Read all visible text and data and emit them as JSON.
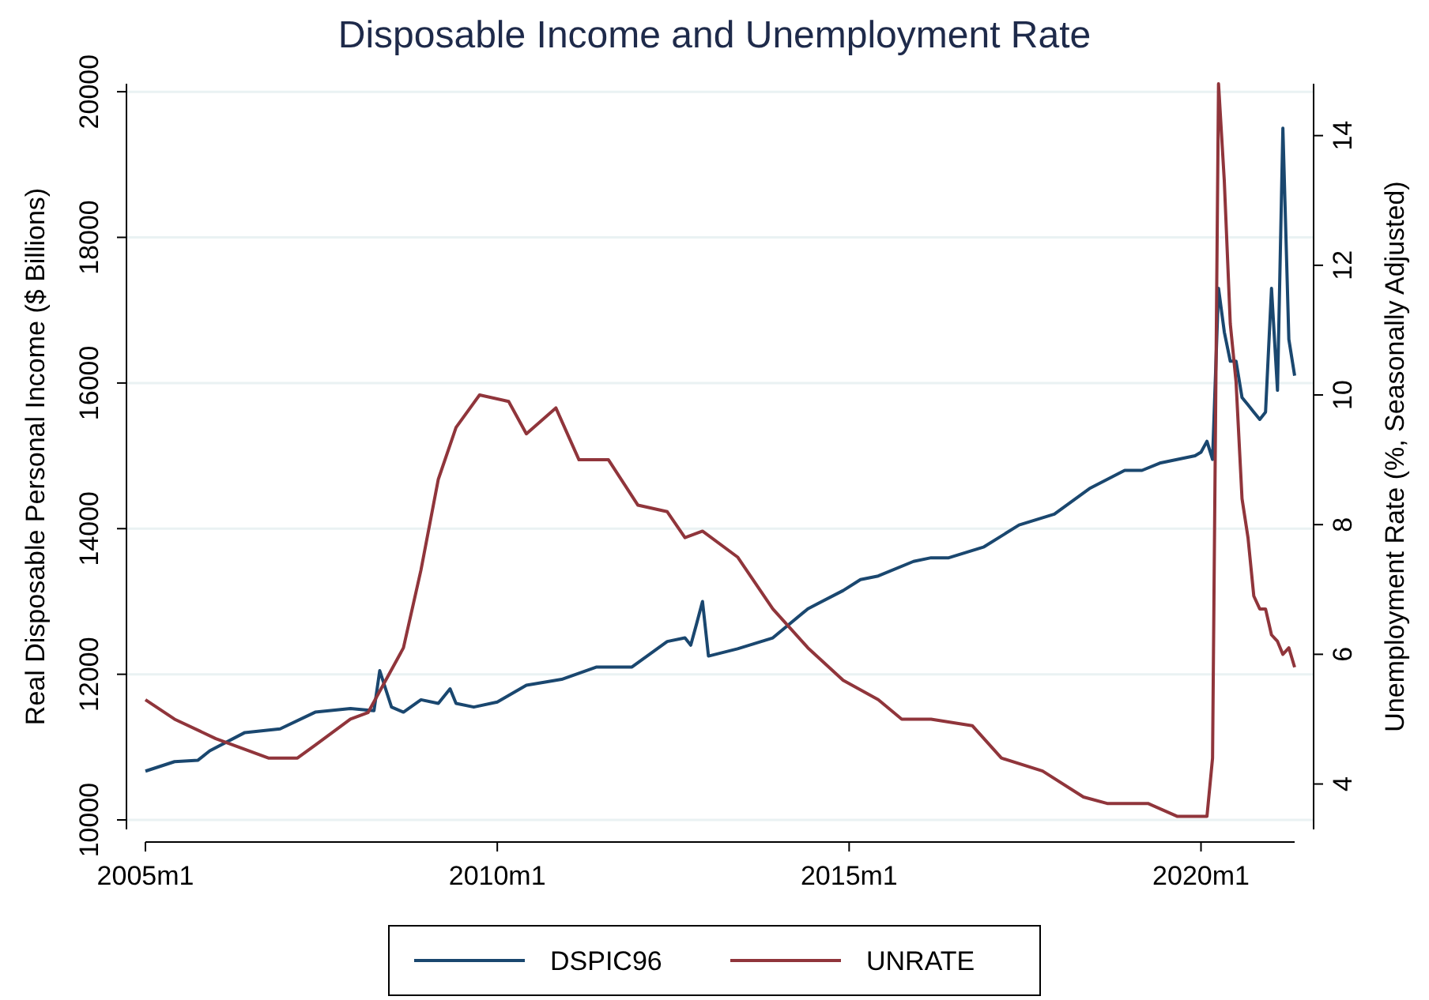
{
  "chart_data": {
    "type": "line",
    "title": "Disposable Income and Unemployment Rate",
    "ylabel": "Real Disposable Personal Income ($ Billions)",
    "y2label": "Unemployment Rate (%, Seasonally Adjusted)",
    "xlim": [
      "2005-01",
      "2021-05"
    ],
    "xticks": [
      {
        "value": "2005-01",
        "label": "2005m1"
      },
      {
        "value": "2010-01",
        "label": "2010m1"
      },
      {
        "value": "2015-01",
        "label": "2015m1"
      },
      {
        "value": "2020-01",
        "label": "2020m1"
      }
    ],
    "ylim": [
      9870,
      20110
    ],
    "yticks": [
      10000,
      12000,
      14000,
      16000,
      18000,
      20000
    ],
    "y2lim": [
      3.3,
      14.8
    ],
    "y2ticks": [
      4,
      6,
      8,
      10,
      12,
      14
    ],
    "grid": "y",
    "legend": "bottom",
    "line_style": "solid",
    "series": [
      {
        "name": "DSPIC96",
        "color": "#1a476f",
        "x": [
          "2005-01",
          "2005-06",
          "2005-10",
          "2005-12",
          "2006-06",
          "2006-12",
          "2007-06",
          "2007-12",
          "2008-04",
          "2008-05",
          "2008-07",
          "2008-09",
          "2008-12",
          "2009-03",
          "2009-05",
          "2009-06",
          "2009-09",
          "2010-01",
          "2010-06",
          "2010-12",
          "2011-06",
          "2011-12",
          "2012-06",
          "2012-09",
          "2012-10",
          "2012-11",
          "2012-12",
          "2013-01",
          "2013-06",
          "2013-12",
          "2014-06",
          "2014-12",
          "2015-03",
          "2015-06",
          "2015-12",
          "2016-03",
          "2016-06",
          "2016-12",
          "2017-06",
          "2017-12",
          "2018-06",
          "2018-12",
          "2019-03",
          "2019-06",
          "2019-12",
          "2020-01",
          "2020-02",
          "2020-03",
          "2020-04",
          "2020-05",
          "2020-06",
          "2020-07",
          "2020-08",
          "2020-09",
          "2020-10",
          "2020-11",
          "2020-12",
          "2021-01",
          "2021-02",
          "2021-03",
          "2021-04",
          "2021-05"
        ],
        "values": [
          10670,
          10800,
          10820,
          10950,
          11200,
          11250,
          11480,
          11530,
          11500,
          12050,
          11550,
          11480,
          11650,
          11600,
          11800,
          11600,
          11550,
          11620,
          11850,
          11930,
          12100,
          12100,
          12450,
          12500,
          12400,
          12700,
          13000,
          12250,
          12350,
          12500,
          12900,
          13150,
          13300,
          13350,
          13550,
          13600,
          13600,
          13750,
          14050,
          14200,
          14550,
          14800,
          14800,
          14900,
          15000,
          15050,
          15200,
          14950,
          17300,
          16700,
          16300,
          16300,
          15800,
          15700,
          15600,
          15500,
          15600,
          17300,
          15900,
          19500,
          16600,
          16100
        ]
      },
      {
        "name": "UNRATE",
        "color": "#90353b",
        "x": [
          "2005-01",
          "2005-06",
          "2006-01",
          "2006-10",
          "2007-03",
          "2007-06",
          "2007-12",
          "2008-03",
          "2008-06",
          "2008-09",
          "2008-12",
          "2009-03",
          "2009-06",
          "2009-10",
          "2010-03",
          "2010-06",
          "2010-11",
          "2011-03",
          "2011-08",
          "2012-01",
          "2012-06",
          "2012-09",
          "2012-12",
          "2013-06",
          "2013-12",
          "2014-06",
          "2014-12",
          "2015-06",
          "2015-10",
          "2016-03",
          "2016-10",
          "2017-03",
          "2017-10",
          "2018-05",
          "2018-09",
          "2019-04",
          "2019-09",
          "2020-02",
          "2020-03",
          "2020-04",
          "2020-05",
          "2020-06",
          "2020-07",
          "2020-08",
          "2020-09",
          "2020-10",
          "2020-11",
          "2020-12",
          "2021-01",
          "2021-02",
          "2021-03",
          "2021-04",
          "2021-05"
        ],
        "axis": "y2",
        "values": [
          5.3,
          5.0,
          4.7,
          4.4,
          4.4,
          4.6,
          5.0,
          5.1,
          5.6,
          6.1,
          7.3,
          8.7,
          9.5,
          10.0,
          9.9,
          9.4,
          9.8,
          9.0,
          9.0,
          8.3,
          8.2,
          7.8,
          7.9,
          7.5,
          6.7,
          6.1,
          5.6,
          5.3,
          5.0,
          5.0,
          4.9,
          4.4,
          4.2,
          3.8,
          3.7,
          3.7,
          3.5,
          3.5,
          4.4,
          14.8,
          13.3,
          11.1,
          10.2,
          8.4,
          7.8,
          6.9,
          6.7,
          6.7,
          6.3,
          6.2,
          6.0,
          6.1,
          5.8
        ]
      }
    ]
  }
}
